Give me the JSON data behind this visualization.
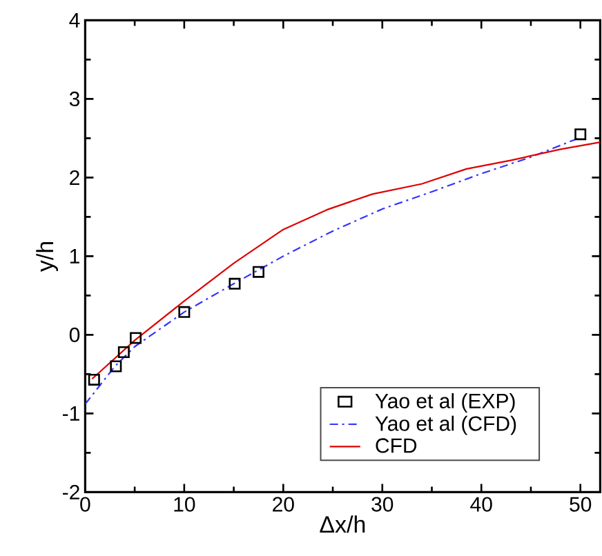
{
  "chart_data": {
    "type": "line",
    "xlabel": "Δx/h",
    "ylabel": "y/h",
    "xlim": [
      0,
      52
    ],
    "ylim": [
      -2,
      4
    ],
    "xticks": [
      0,
      10,
      20,
      30,
      40,
      50
    ],
    "yticks": [
      -2,
      -1,
      0,
      1,
      2,
      3,
      4
    ],
    "grid": false,
    "legend": "bottom right",
    "series": [
      {
        "name": "Yao et al (EXP)",
        "type": "scatter",
        "marker": "square",
        "color": "#000000",
        "x": [
          0.9,
          3.1,
          3.9,
          5.1,
          10.0,
          15.1,
          17.5,
          50.0
        ],
        "values": [
          -0.57,
          -0.4,
          -0.22,
          -0.04,
          0.29,
          0.65,
          0.8,
          2.55
        ]
      },
      {
        "name": "Yao et al (CFD)",
        "line_style": "dashdot",
        "color": "#3333ff",
        "x": [
          0,
          3,
          5,
          10,
          15,
          20,
          25,
          30,
          35,
          40,
          45,
          50
        ],
        "values": [
          -0.88,
          -0.4,
          -0.15,
          0.29,
          0.65,
          1.0,
          1.32,
          1.6,
          1.82,
          2.05,
          2.26,
          2.51
        ]
      },
      {
        "name": "CFD",
        "line_style": "solid",
        "color": "#dd0000",
        "x": [
          0.7,
          5,
          10,
          15,
          20,
          24.4,
          29,
          34,
          38.5,
          43,
          48,
          52
        ],
        "values": [
          -0.56,
          -0.07,
          0.43,
          0.91,
          1.34,
          1.59,
          1.79,
          1.92,
          2.11,
          2.22,
          2.36,
          2.45
        ]
      }
    ]
  }
}
